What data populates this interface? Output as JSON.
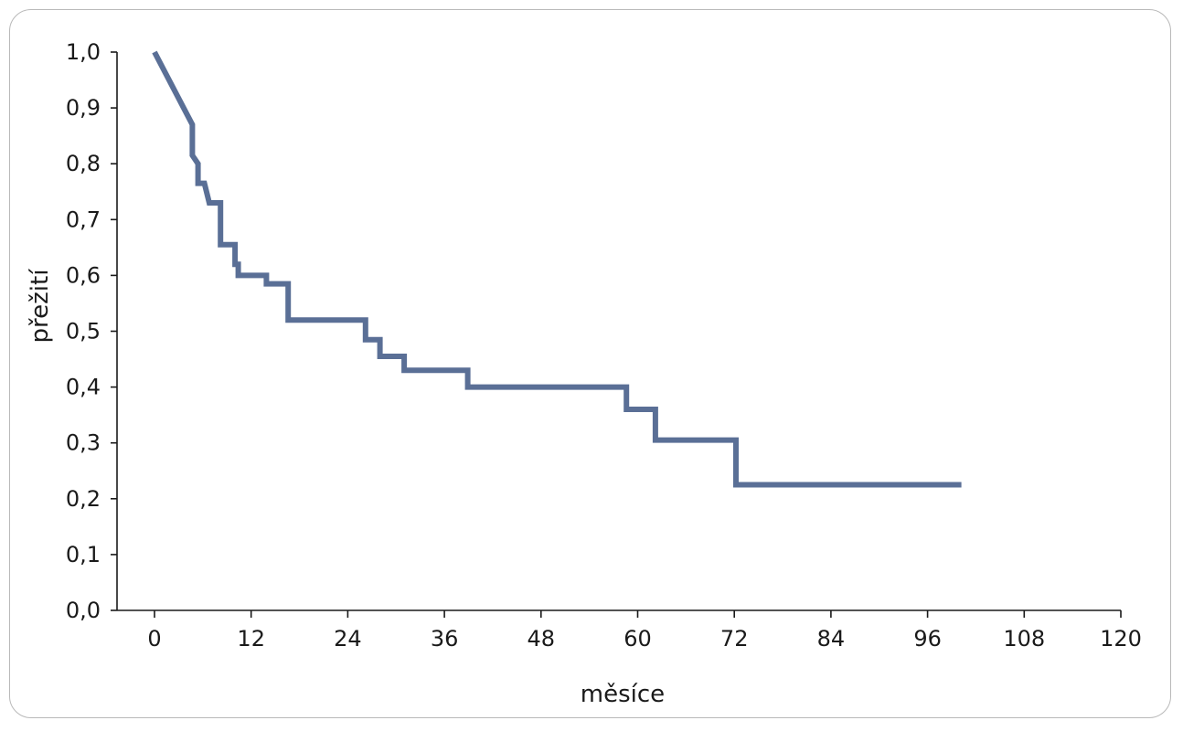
{
  "chart_data": {
    "type": "line",
    "xlabel": "měsíce",
    "ylabel": "přežití",
    "xlim": [
      0,
      120
    ],
    "ylim": [
      0,
      1
    ],
    "xticks": [
      0,
      12,
      24,
      36,
      48,
      60,
      72,
      84,
      96,
      108,
      120
    ],
    "xtick_labels": [
      "0",
      "12",
      "24",
      "36",
      "48",
      "60",
      "72",
      "84",
      "96",
      "108",
      "120"
    ],
    "yticks": [
      0,
      0.1,
      0.2,
      0.3,
      0.4,
      0.5,
      0.6,
      0.7,
      0.8,
      0.9,
      1.0
    ],
    "ytick_labels": [
      "0,0",
      "0,1",
      "0,2",
      "0,3",
      "0,4",
      "0,5",
      "0,6",
      "0,7",
      "0,8",
      "0,9",
      "1,0"
    ],
    "grid": false,
    "line_color": "#5a6f96",
    "series": [
      {
        "x": [
          0,
          4.7,
          4.7,
          5.4,
          5.4,
          6.2,
          6.2,
          6.8,
          6.8,
          8.2,
          8.2,
          10.0,
          10.0,
          10.4,
          10.4,
          13.9,
          13.9,
          16.6,
          16.6,
          26.2,
          26.2,
          28.0,
          28.0,
          31.0,
          31.0,
          38.9,
          38.9,
          58.6,
          58.6,
          62.2,
          62.2,
          72.2,
          72.2,
          100.2
        ],
        "y": [
          1.0,
          0.87,
          0.815,
          0.8,
          0.765,
          0.765,
          0.765,
          0.73,
          0.73,
          0.73,
          0.655,
          0.655,
          0.62,
          0.62,
          0.6,
          0.6,
          0.585,
          0.585,
          0.52,
          0.52,
          0.485,
          0.485,
          0.455,
          0.455,
          0.43,
          0.43,
          0.4,
          0.4,
          0.36,
          0.36,
          0.305,
          0.305,
          0.225,
          0.225
        ]
      }
    ]
  }
}
